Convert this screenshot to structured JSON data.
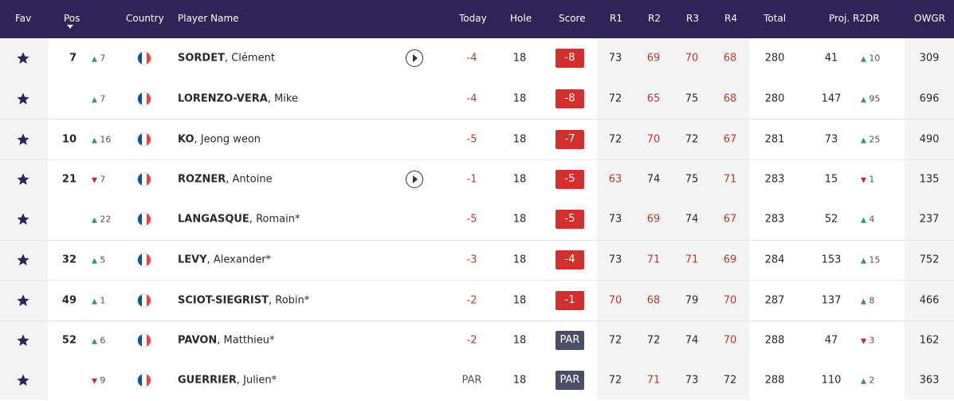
{
  "header": {
    "fav": "Fav",
    "pos": "Pos",
    "country": "Country",
    "player_name": "Player Name",
    "today": "Today",
    "hole": "Hole",
    "score": "Score",
    "r1": "R1",
    "r2": "R2",
    "r3": "R3",
    "r4": "R4",
    "total": "Total",
    "proj": "Proj. R2DR",
    "owgr": "OWGR"
  },
  "colors": {
    "header_bg": "#2e2458",
    "star": "#2e2458",
    "score_red": "#d32f2f",
    "score_par": "#4a4e69",
    "under_par_text": "#c0392b",
    "up": "#2e9b5a",
    "down": "#c62828",
    "flag_blue": "#0055a4",
    "flag_red": "#ef4135"
  },
  "rows": [
    {
      "pos": "7",
      "mv_dir": "up",
      "mv": "7",
      "last": "SORDET",
      "first": ", Clément",
      "play": true,
      "today": "-4",
      "hole": "18",
      "score": "-8",
      "score_type": "red",
      "r1": "73",
      "r2": "69",
      "r3": "70",
      "r4": "68",
      "r1_red": false,
      "r2_red": true,
      "r3_red": true,
      "r4_red": true,
      "total": "280",
      "proj": "41",
      "proj_dir": "up",
      "proj_mv": "10",
      "owgr": "309"
    },
    {
      "pos": "",
      "mv_dir": "up",
      "mv": "7",
      "last": "LORENZO-VERA",
      "first": ", Mike",
      "play": false,
      "today": "-4",
      "hole": "18",
      "score": "-8",
      "score_type": "red",
      "r1": "72",
      "r2": "65",
      "r3": "75",
      "r4": "68",
      "r1_red": false,
      "r2_red": true,
      "r3_red": false,
      "r4_red": true,
      "total": "280",
      "proj": "147",
      "proj_dir": "up",
      "proj_mv": "95",
      "owgr": "696"
    },
    {
      "pos": "10",
      "mv_dir": "up",
      "mv": "16",
      "last": "KO",
      "first": ", Jeong weon",
      "play": false,
      "today": "-5",
      "hole": "18",
      "score": "-7",
      "score_type": "red",
      "r1": "72",
      "r2": "70",
      "r3": "72",
      "r4": "67",
      "r1_red": false,
      "r2_red": true,
      "r3_red": false,
      "r4_red": true,
      "total": "281",
      "proj": "73",
      "proj_dir": "up",
      "proj_mv": "25",
      "owgr": "490"
    },
    {
      "pos": "21",
      "mv_dir": "down",
      "mv": "7",
      "last": "ROZNER",
      "first": ", Antoine",
      "play": true,
      "today": "-1",
      "hole": "18",
      "score": "-5",
      "score_type": "red",
      "r1": "63",
      "r2": "74",
      "r3": "75",
      "r4": "71",
      "r1_red": true,
      "r2_red": false,
      "r3_red": false,
      "r4_red": true,
      "total": "283",
      "proj": "15",
      "proj_dir": "down",
      "proj_mv": "1",
      "owgr": "135"
    },
    {
      "pos": "",
      "mv_dir": "up",
      "mv": "22",
      "last": "LANGASQUE",
      "first": ", Romain*",
      "play": false,
      "today": "-5",
      "hole": "18",
      "score": "-5",
      "score_type": "red",
      "r1": "73",
      "r2": "69",
      "r3": "74",
      "r4": "67",
      "r1_red": false,
      "r2_red": true,
      "r3_red": false,
      "r4_red": true,
      "total": "283",
      "proj": "52",
      "proj_dir": "up",
      "proj_mv": "4",
      "owgr": "237"
    },
    {
      "pos": "32",
      "mv_dir": "up",
      "mv": "5",
      "last": "LEVY",
      "first": ", Alexander*",
      "play": false,
      "today": "-3",
      "hole": "18",
      "score": "-4",
      "score_type": "red",
      "r1": "73",
      "r2": "71",
      "r3": "71",
      "r4": "69",
      "r1_red": false,
      "r2_red": true,
      "r3_red": true,
      "r4_red": true,
      "total": "284",
      "proj": "153",
      "proj_dir": "up",
      "proj_mv": "15",
      "owgr": "752"
    },
    {
      "pos": "49",
      "mv_dir": "up",
      "mv": "1",
      "last": "SCIOT-SIEGRIST",
      "first": ", Robin*",
      "play": false,
      "today": "-2",
      "hole": "18",
      "score": "-1",
      "score_type": "red",
      "r1": "70",
      "r2": "68",
      "r3": "79",
      "r4": "70",
      "r1_red": true,
      "r2_red": true,
      "r3_red": false,
      "r4_red": true,
      "total": "287",
      "proj": "137",
      "proj_dir": "up",
      "proj_mv": "8",
      "owgr": "466"
    },
    {
      "pos": "52",
      "mv_dir": "up",
      "mv": "6",
      "last": "PAVON",
      "first": ", Matthieu*",
      "play": false,
      "today": "-2",
      "hole": "18",
      "score": "PAR",
      "score_type": "par",
      "r1": "72",
      "r2": "72",
      "r3": "74",
      "r4": "70",
      "r1_red": false,
      "r2_red": false,
      "r3_red": false,
      "r4_red": true,
      "total": "288",
      "proj": "47",
      "proj_dir": "down",
      "proj_mv": "3",
      "owgr": "162"
    },
    {
      "pos": "",
      "mv_dir": "down",
      "mv": "9",
      "last": "GUERRIER",
      "first": ", Julien*",
      "play": false,
      "today": "PAR",
      "hole": "18",
      "score": "PAR",
      "score_type": "par",
      "r1": "72",
      "r2": "71",
      "r3": "73",
      "r4": "72",
      "r1_red": false,
      "r2_red": true,
      "r3_red": false,
      "r4_red": false,
      "total": "288",
      "proj": "110",
      "proj_dir": "up",
      "proj_mv": "2",
      "owgr": "363"
    }
  ]
}
